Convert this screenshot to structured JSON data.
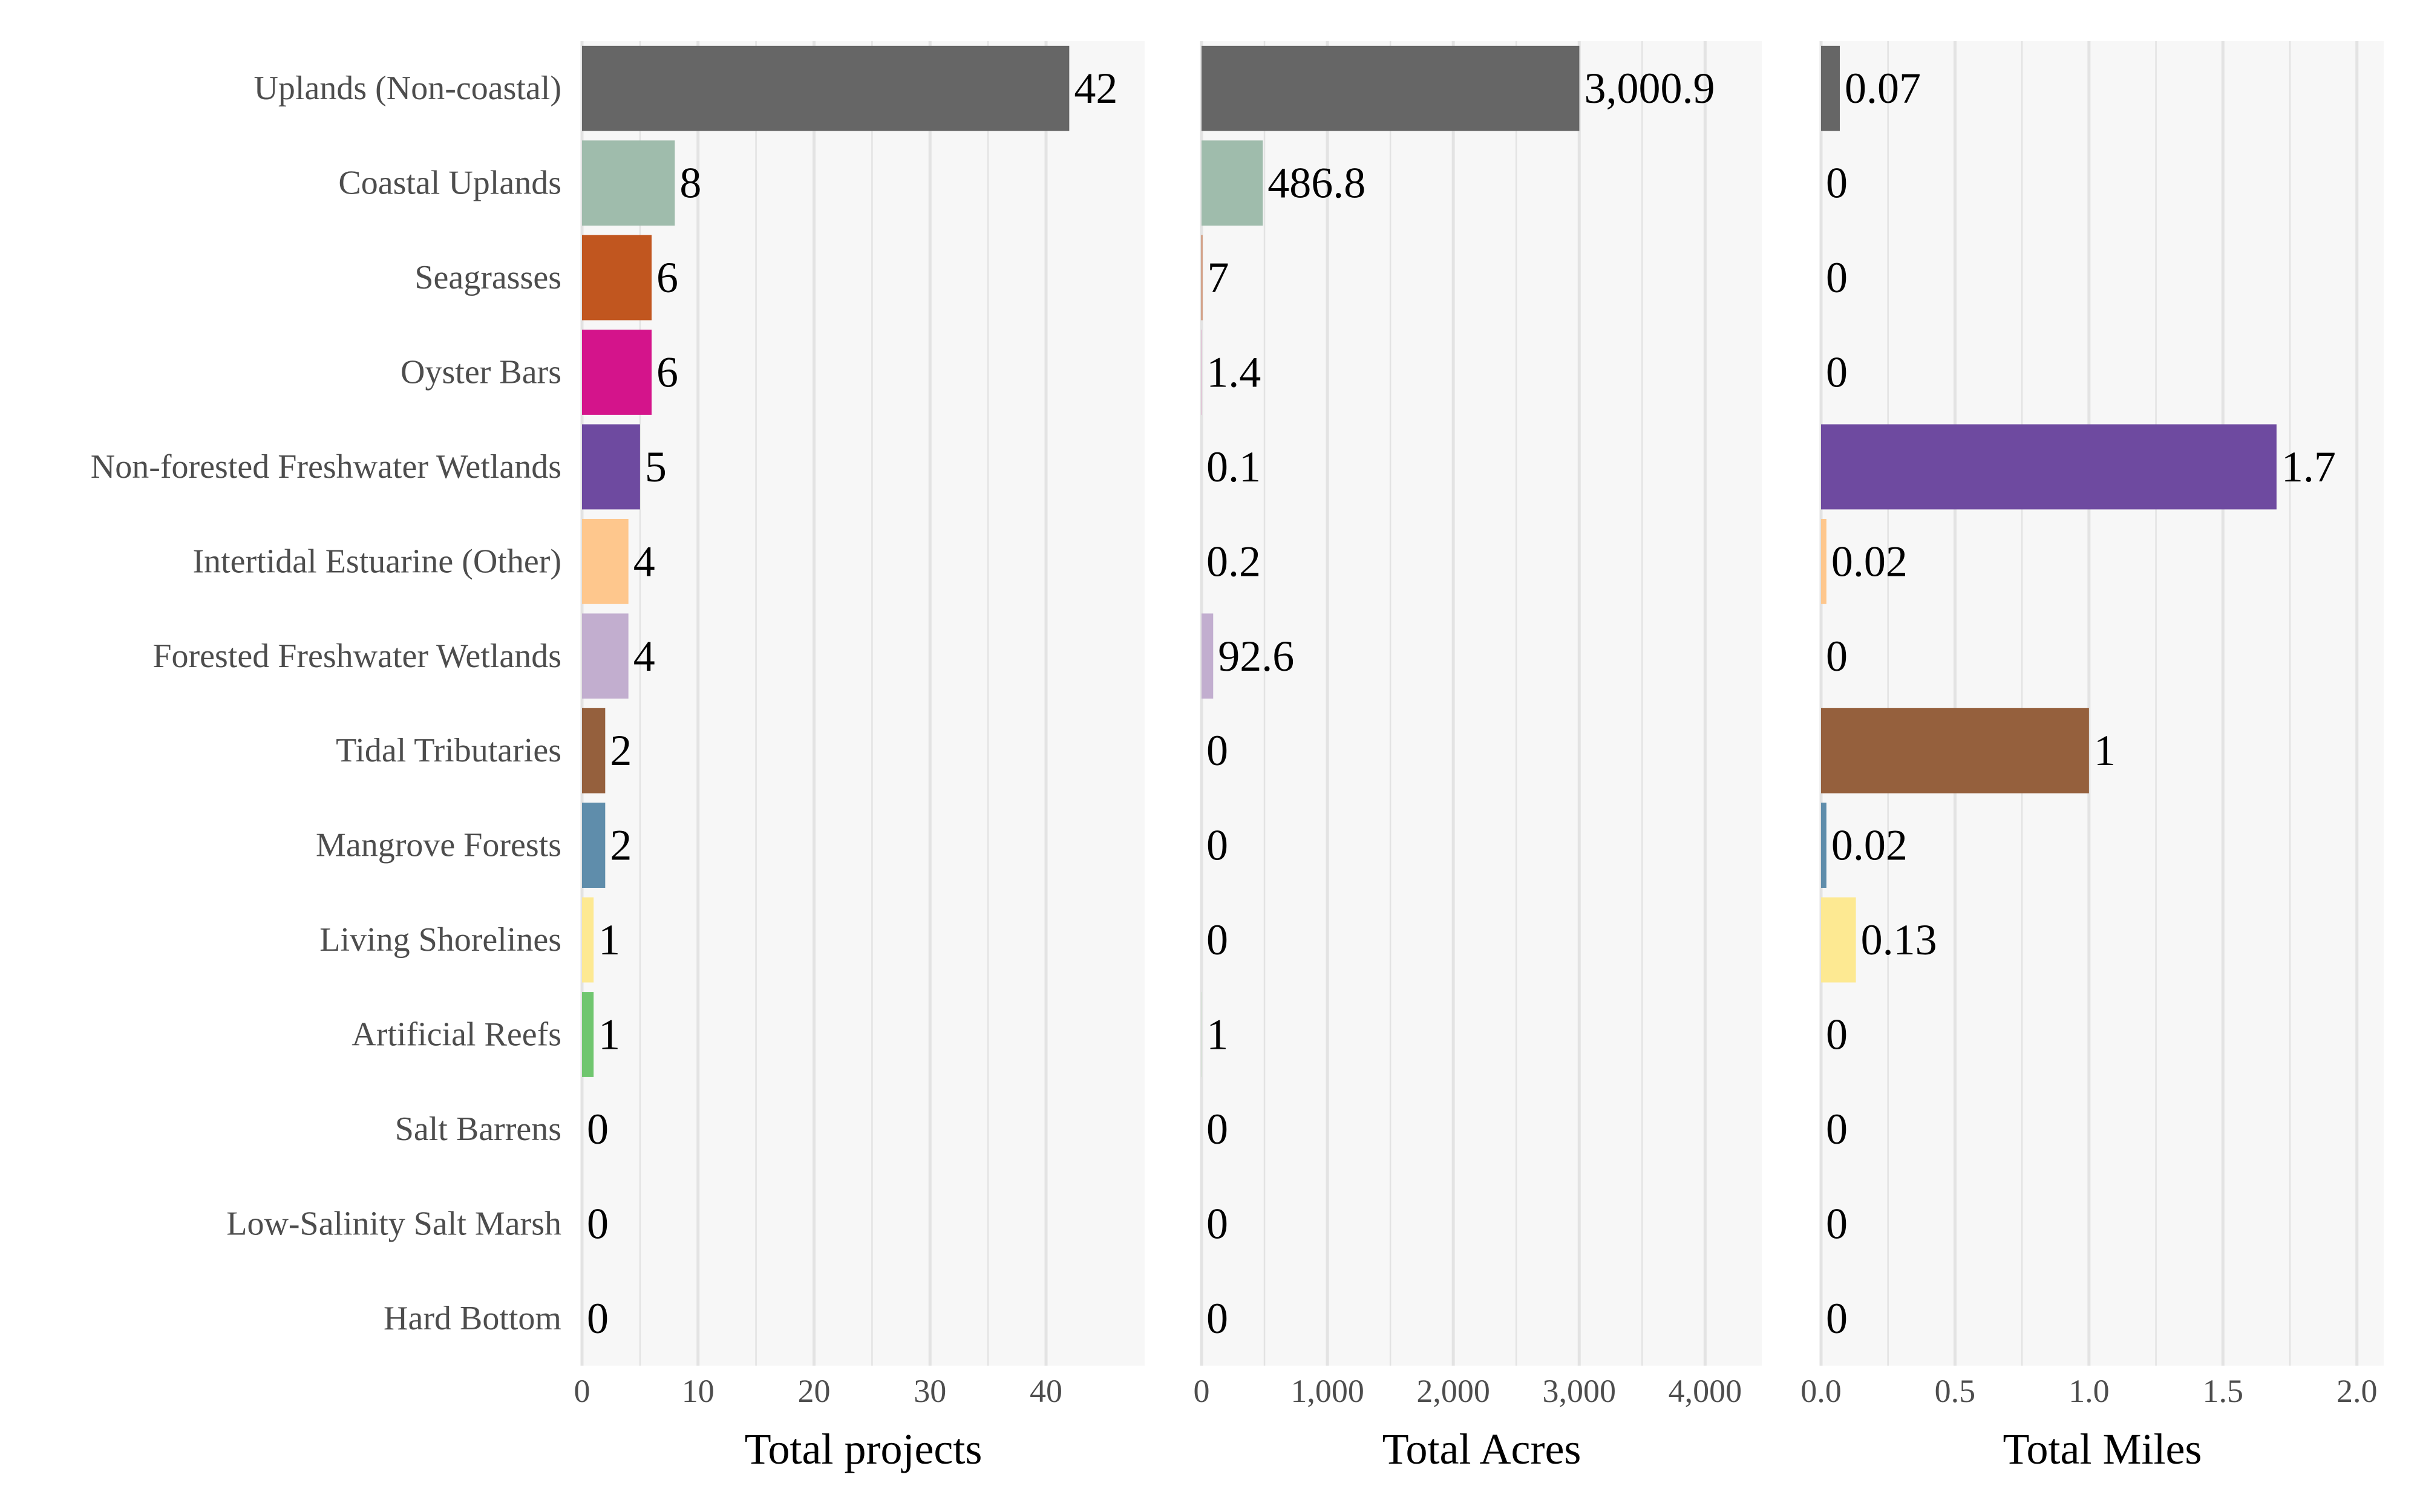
{
  "chart_data": {
    "type": "bar",
    "orientation": "horizontal",
    "categories": [
      "Uplands (Non-coastal)",
      "Coastal Uplands",
      "Seagrasses",
      "Oyster Bars",
      "Non-forested Freshwater Wetlands",
      "Intertidal Estuarine (Other)",
      "Forested Freshwater Wetlands",
      "Tidal Tributaries",
      "Mangrove Forests",
      "Living Shorelines",
      "Artificial Reefs",
      "Salt Barrens",
      "Low-Salinity Salt Marsh",
      "Hard Bottom"
    ],
    "colors": [
      "#666666",
      "#9fbcac",
      "#c1561f",
      "#d4148b",
      "#6e4aa0",
      "#fec78d",
      "#c2aecf",
      "#95603d",
      "#5f8dab",
      "#fde992",
      "#70c66f",
      "#cccccc",
      "#cccccc",
      "#cccccc"
    ],
    "panels": [
      {
        "xlabel": "Total projects",
        "values": [
          42,
          8,
          6,
          6,
          5,
          4,
          4,
          2,
          2,
          1,
          1,
          0,
          0,
          0
        ],
        "value_labels": [
          "42",
          "8",
          "6",
          "6",
          "5",
          "4",
          "4",
          "2",
          "2",
          "1",
          "1",
          "0",
          "0",
          "0"
        ],
        "ticks": [
          0,
          10,
          20,
          30,
          40
        ],
        "tick_labels": [
          "0",
          "10",
          "20",
          "30",
          "40"
        ],
        "xlim": [
          0,
          48.5
        ]
      },
      {
        "xlabel": "Total Acres",
        "values": [
          3000.9,
          486.8,
          7,
          1.4,
          0.1,
          0.2,
          92.6,
          0,
          0,
          0,
          1,
          0,
          0,
          0
        ],
        "value_labels": [
          "3,000.9",
          "486.8",
          "7",
          "1.4",
          "0.1",
          "0.2",
          "92.6",
          "0",
          "0",
          "0",
          "1",
          "0",
          "0",
          "0"
        ],
        "ticks": [
          0,
          1000,
          2000,
          3000,
          4000
        ],
        "tick_labels": [
          "0",
          "1,000",
          "2,000",
          "3,000",
          "4,000"
        ],
        "xlim": [
          0,
          4450
        ]
      },
      {
        "xlabel": "Total Miles",
        "values": [
          0.07,
          0,
          0,
          0,
          1.7,
          0.02,
          0,
          1,
          0.02,
          0.13,
          0,
          0,
          0,
          0
        ],
        "value_labels": [
          "0.07",
          "0",
          "0",
          "0",
          "1.7",
          "0.02",
          "0",
          "1",
          "0.02",
          "0.13",
          "0",
          "0",
          "0",
          "0"
        ],
        "ticks": [
          0,
          0.5,
          1,
          1.5,
          2
        ],
        "tick_labels": [
          "0.0",
          "0.5",
          "1.0",
          "1.5",
          "2.0"
        ],
        "xlim": [
          0,
          2.1
        ]
      }
    ],
    "grid": true,
    "legend": "none"
  }
}
